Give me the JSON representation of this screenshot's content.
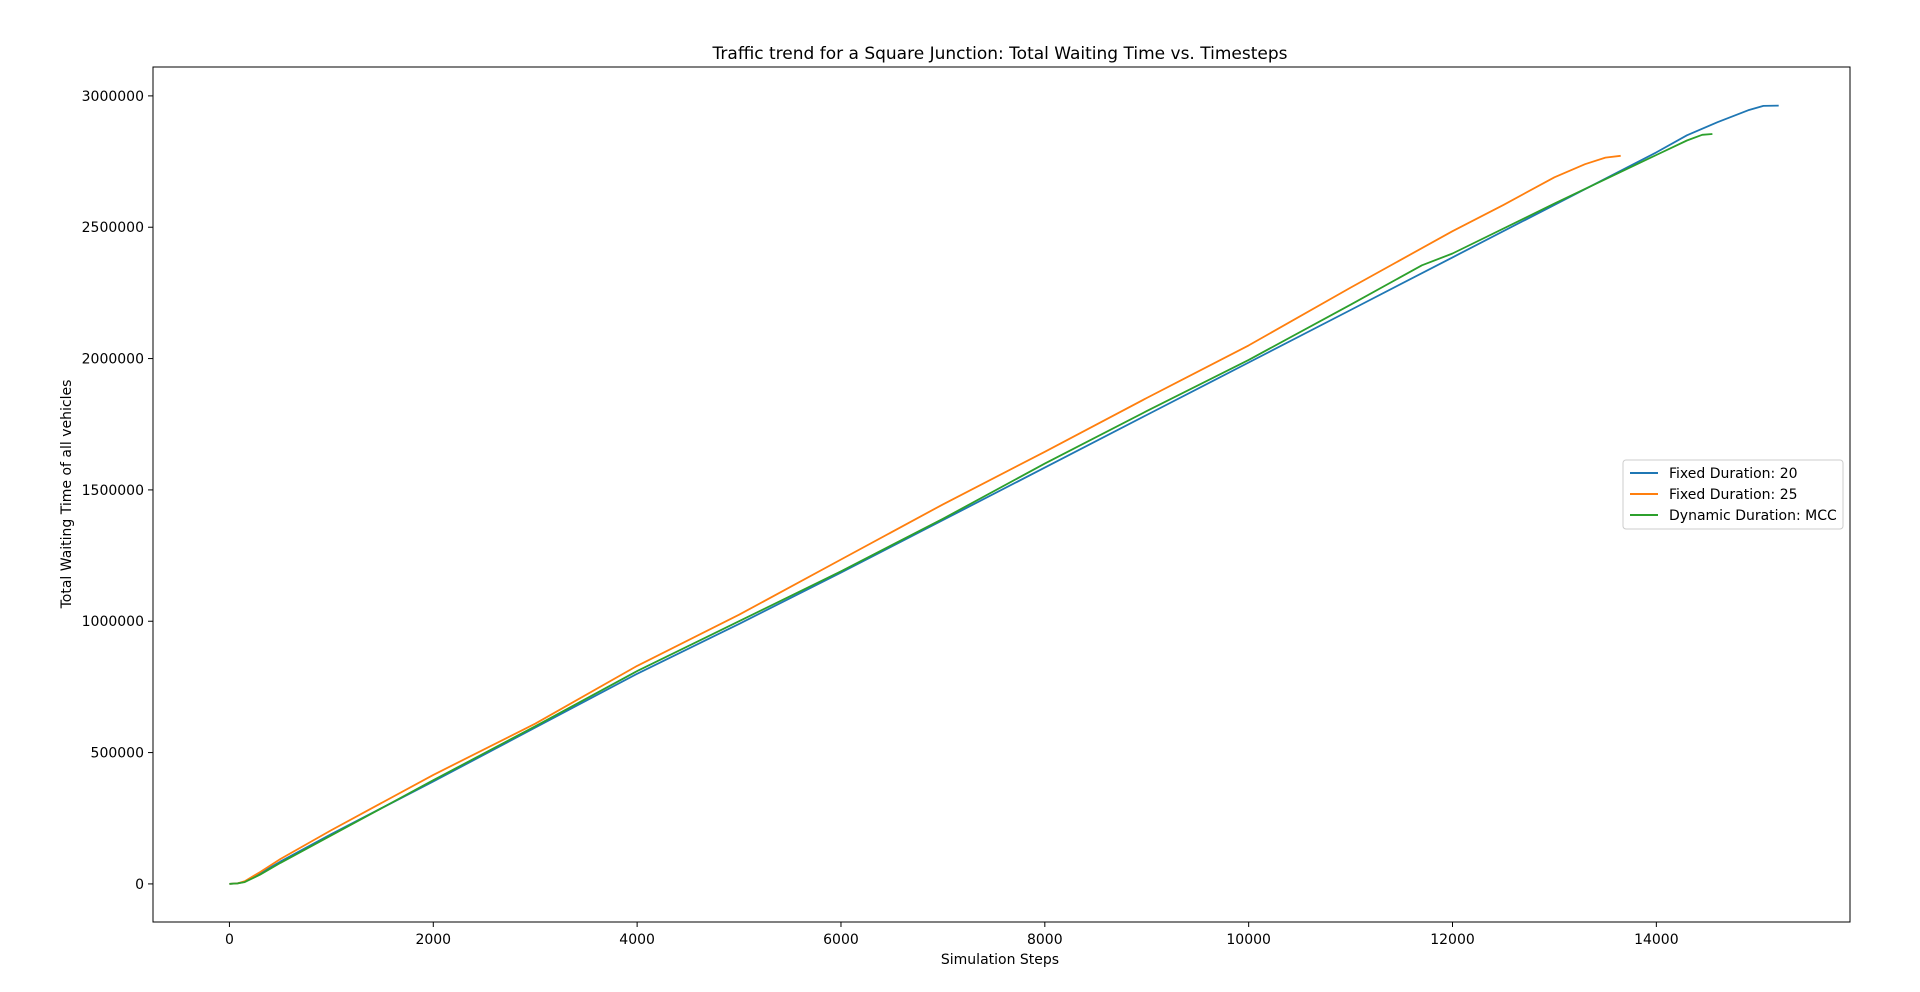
{
  "chart_data": {
    "type": "line",
    "title": "Traffic trend for a Square Junction: Total Waiting Time vs. Timesteps",
    "xlabel": "Simulation Steps",
    "ylabel": "Total Waiting Time of all vehicles",
    "xlim": [
      -750,
      15900
    ],
    "ylim": [
      -145000,
      3110000
    ],
    "xticks": [
      0,
      2000,
      4000,
      6000,
      8000,
      10000,
      12000,
      14000
    ],
    "yticks": [
      0,
      500000,
      1000000,
      1500000,
      2000000,
      2500000,
      3000000
    ],
    "grid": false,
    "legend_position": "center-right",
    "series": [
      {
        "name": "Fixed Duration: 20",
        "color": "#1f77b4",
        "x": [
          0,
          80,
          150,
          300,
          500,
          1000,
          2000,
          3000,
          4000,
          5000,
          6000,
          7000,
          8000,
          9000,
          10000,
          11000,
          12000,
          13000,
          14000,
          14300,
          14600,
          14900,
          15050,
          15200
        ],
        "y": [
          0,
          2000,
          8000,
          40000,
          85000,
          190000,
          390000,
          595000,
          800000,
          990000,
          1185000,
          1385000,
          1585000,
          1785000,
          1985000,
          2185000,
          2385000,
          2585000,
          2785000,
          2850000,
          2900000,
          2945000,
          2962000,
          2963000
        ]
      },
      {
        "name": "Fixed Duration: 25",
        "color": "#ff7f0e",
        "x": [
          0,
          80,
          150,
          300,
          500,
          1000,
          2000,
          3000,
          4000,
          5000,
          6000,
          7000,
          8000,
          9000,
          10000,
          11000,
          12000,
          12500,
          13000,
          13300,
          13500,
          13650
        ],
        "y": [
          0,
          2000,
          10000,
          45000,
          95000,
          205000,
          415000,
          610000,
          830000,
          1025000,
          1235000,
          1445000,
          1645000,
          1850000,
          2050000,
          2270000,
          2485000,
          2585000,
          2690000,
          2740000,
          2765000,
          2772000
        ]
      },
      {
        "name": "Dynamic Duration: MCC",
        "color": "#2ca02c",
        "x": [
          0,
          80,
          150,
          300,
          500,
          1000,
          2000,
          3000,
          4000,
          5000,
          6000,
          7000,
          8000,
          9000,
          10000,
          11000,
          11700,
          12000,
          13000,
          14000,
          14300,
          14450,
          14550
        ],
        "y": [
          0,
          2000,
          7000,
          35000,
          80000,
          185000,
          395000,
          600000,
          810000,
          1000000,
          1190000,
          1390000,
          1600000,
          1800000,
          1995000,
          2205000,
          2355000,
          2400000,
          2590000,
          2775000,
          2830000,
          2852000,
          2855000
        ]
      }
    ]
  }
}
